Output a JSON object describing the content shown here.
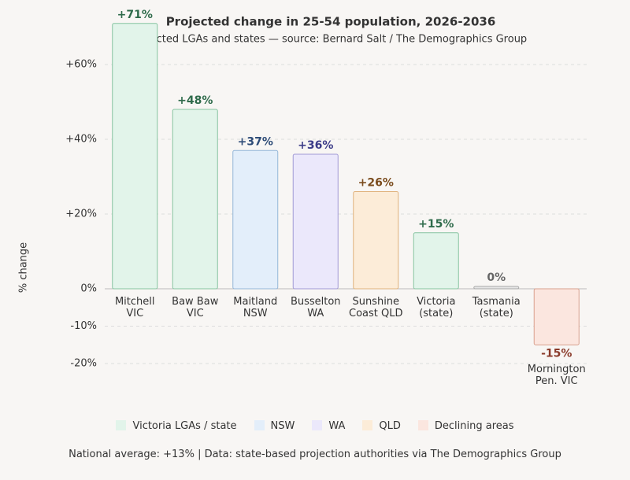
{
  "chart_data": {
    "type": "bar",
    "title": "Projected change in 25-54 population, 2026-2036",
    "subtitle": "Selected LGAs and states — source: Bernard Salt / The Demographics Group",
    "y_label": "% change",
    "categories": [
      "Mitchell\nVIC",
      "Baw Baw\nVIC",
      "Maitland\nNSW",
      "Busselton\nWA",
      "Sunshine\nCoast QLD",
      "Victoria\n(state)",
      "Tasmania\n(state)",
      "Mornington\nPen. VIC"
    ],
    "values": [
      71,
      48,
      37,
      36,
      26,
      15,
      0,
      -15
    ],
    "value_labels": [
      "+71%",
      "+48%",
      "+37%",
      "+36%",
      "+26%",
      "+15%",
      "0%",
      "-15%"
    ],
    "colors": [
      "#e2f4ea",
      "#e2f4ea",
      "#e3eefa",
      "#ebe8fb",
      "#fcecd8",
      "#e2f4ea",
      "#e6e6e6",
      "#fbe6df"
    ],
    "edge_colors": [
      "#86c4a0",
      "#86c4a0",
      "#93b5d8",
      "#a29ad6",
      "#e0b27c",
      "#86c4a0",
      "#a8a8a8",
      "#d9a08e"
    ],
    "label_colors": [
      "#2f6b4b",
      "#2f6b4b",
      "#2e4c78",
      "#3c3c88",
      "#7a4b1c",
      "#2f6b4b",
      "#666666",
      "#8a3a2a"
    ],
    "ylim": [
      -20,
      72
    ],
    "yticks": [
      {
        "value": 60,
        "label": "+60%"
      },
      {
        "value": 40,
        "label": "+40%"
      },
      {
        "value": 20,
        "label": "+20%"
      },
      {
        "value": 0,
        "label": "0%"
      },
      {
        "value": -10,
        "label": "-10%"
      },
      {
        "value": -20,
        "label": "-20%"
      }
    ],
    "grid": true,
    "legend": [
      {
        "name": "Victoria LGAs / state",
        "color": "#e2f4ea"
      },
      {
        "name": "NSW",
        "color": "#e3eefa"
      },
      {
        "name": "WA",
        "color": "#ebe8fb"
      },
      {
        "name": "QLD",
        "color": "#fcecd8"
      },
      {
        "name": "Declining areas",
        "color": "#fbe6df"
      }
    ],
    "footnote": "National average: +13% | Data: state-based projection authorities via The Demographics Group"
  }
}
